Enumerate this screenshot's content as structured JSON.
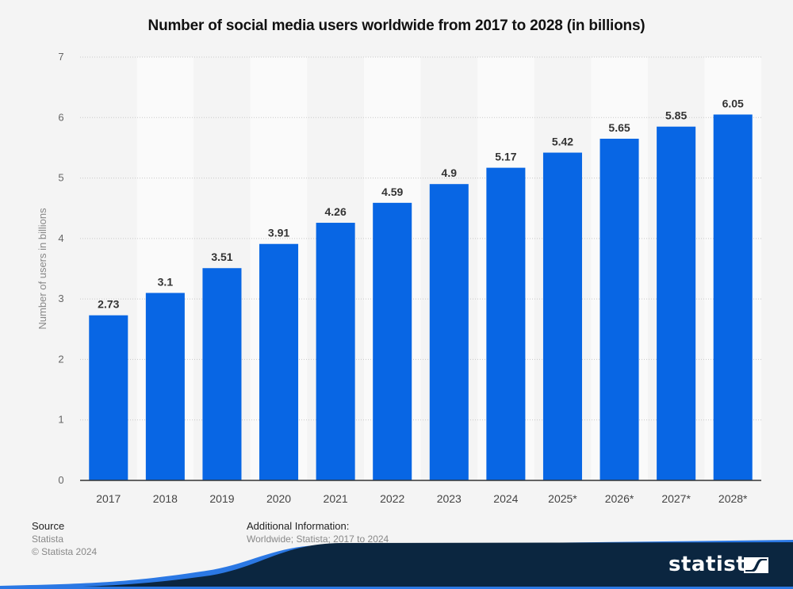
{
  "chart_data": {
    "type": "bar",
    "title": "Number of social media users worldwide from 2017 to 2028 (in billions)",
    "xlabel": "",
    "ylabel": "Number of users in billions",
    "ylim": [
      0,
      7
    ],
    "yticks": [
      0,
      1,
      2,
      3,
      4,
      5,
      6,
      7
    ],
    "grid": true,
    "categories": [
      "2017",
      "2018",
      "2019",
      "2020",
      "2021",
      "2022",
      "2023",
      "2024",
      "2025*",
      "2026*",
      "2027*",
      "2028*"
    ],
    "values": [
      2.73,
      3.1,
      3.51,
      3.91,
      4.26,
      4.59,
      4.9,
      5.17,
      5.42,
      5.65,
      5.85,
      6.05
    ],
    "data_labels": [
      "2.73",
      "3.1",
      "3.51",
      "3.91",
      "4.26",
      "4.59",
      "4.9",
      "5.17",
      "5.42",
      "5.65",
      "5.85",
      "6.05"
    ],
    "bar_color": "#0866e4"
  },
  "footer": {
    "source_heading": "Source",
    "source_lines": [
      "Statista",
      "© Statista 2024"
    ],
    "info_heading": "Additional Information:",
    "info_text": "Worldwide; Statista; 2017 to 2024"
  },
  "brand": {
    "logo_text": "statista",
    "logo_icon": "statista-logo-icon",
    "accent_color": "#2b78e4",
    "dark_color": "#0b2640"
  }
}
